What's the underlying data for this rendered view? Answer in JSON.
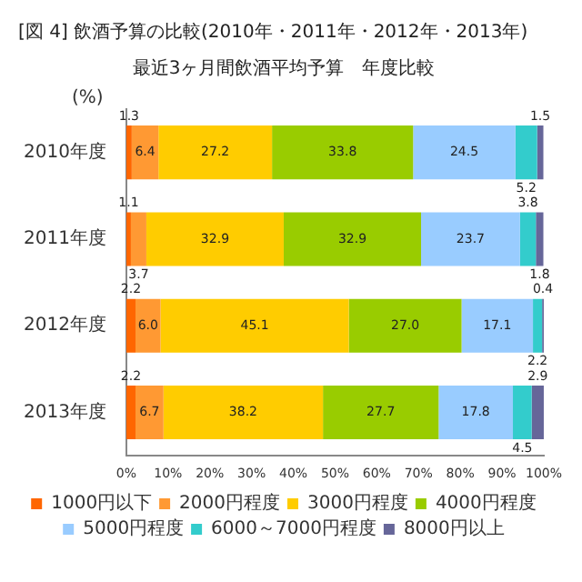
{
  "chart_data": {
    "type": "bar",
    "orientation": "horizontal",
    "stacked": true,
    "title": "[図 4] 飲酒予算の比較(2010年・2011年・2012年・2013年)",
    "subtitle": "最近3ヶ月間飲酒平均予算　年度比較",
    "annotations": [
      "(%)"
    ],
    "categories": [
      "2010年度",
      "2011年度",
      "2012年度",
      "2013年度"
    ],
    "series": [
      {
        "name": "1000円以下",
        "color": "#ff6600",
        "values": [
          1.3,
          1.1,
          2.2,
          2.2
        ],
        "value_labels": [
          "1.3",
          "1.1",
          "2.2",
          "2.2"
        ]
      },
      {
        "name": "2000円程度",
        "color": "#ff9933",
        "values": [
          6.4,
          3.7,
          6.0,
          6.7
        ],
        "value_labels": [
          "6.4",
          "3.7",
          "6.0",
          "6.7"
        ]
      },
      {
        "name": "3000円程度",
        "color": "#ffcc00",
        "values": [
          27.2,
          32.9,
          45.1,
          38.2
        ],
        "value_labels": [
          "27.2",
          "32.9",
          "45.1",
          "38.2"
        ]
      },
      {
        "name": "4000円程度",
        "color": "#99cc00",
        "values": [
          33.8,
          32.9,
          27.0,
          27.7
        ],
        "value_labels": [
          "33.8",
          "32.9",
          "27.0",
          "27.7"
        ]
      },
      {
        "name": "5000円程度",
        "color": "#99ccff",
        "values": [
          24.5,
          23.7,
          17.1,
          17.8
        ],
        "value_labels": [
          "24.5",
          "23.7",
          "17.1",
          "17.8"
        ]
      },
      {
        "name": "6000～7000円程度",
        "color": "#33cccc",
        "values": [
          5.2,
          3.8,
          2.2,
          4.5
        ],
        "value_labels": [
          "5.2",
          "3.8",
          "2.2",
          "4.5"
        ]
      },
      {
        "name": "8000円以上",
        "color": "#666699",
        "values": [
          1.5,
          1.8,
          0.4,
          2.9
        ],
        "value_labels": [
          "1.5",
          "1.8",
          "0.4",
          "2.9"
        ]
      }
    ],
    "xlim": [
      0,
      100
    ],
    "xticks": [
      {
        "value": 0,
        "label": "0%"
      },
      {
        "value": 10,
        "label": "10%"
      },
      {
        "value": 20,
        "label": "20%"
      },
      {
        "value": 30,
        "label": "30%"
      },
      {
        "value": 40,
        "label": "40%"
      },
      {
        "value": 50,
        "label": "50%"
      },
      {
        "value": 60,
        "label": "60%"
      },
      {
        "value": 70,
        "label": "70%"
      },
      {
        "value": 80,
        "label": "80%"
      },
      {
        "value": 90,
        "label": "90%"
      },
      {
        "value": 100,
        "label": "100%"
      }
    ],
    "grid": false,
    "legend": "bottom"
  }
}
